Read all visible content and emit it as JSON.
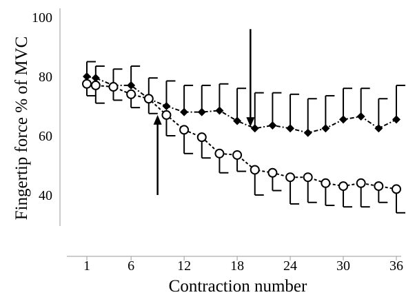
{
  "chart_data": {
    "type": "line",
    "xlabel": "Contraction number",
    "ylabel": "Fingertip force % of MVC",
    "xlim": [
      1,
      36
    ],
    "ylim": [
      30,
      100
    ],
    "x_ticks": [
      1,
      6,
      12,
      18,
      24,
      30,
      36
    ],
    "y_ticks": [
      40,
      60,
      80,
      100
    ],
    "grid": false,
    "legend": "none",
    "series": [
      {
        "marker": "filled-diamond",
        "line_style": "dash-dot",
        "color": "#000000",
        "error_bars": "upper",
        "x": [
          1,
          2,
          4,
          6,
          8,
          10,
          12,
          14,
          16,
          18,
          20,
          22,
          24,
          26,
          28,
          30,
          32,
          34,
          36
        ],
        "y": [
          80,
          79.5,
          77,
          77,
          72.5,
          70,
          68,
          68,
          68.5,
          65,
          62.5,
          63.5,
          62.5,
          61,
          62.5,
          65.5,
          66.5,
          62.5,
          65.5
        ],
        "error": [
          5,
          4,
          5.5,
          6.5,
          7,
          8.5,
          9,
          9,
          9,
          11,
          12,
          11,
          11.5,
          11.5,
          11,
          10.5,
          9.5,
          10,
          11.5
        ]
      },
      {
        "marker": "open-circle",
        "line_style": "dashed",
        "color": "#000000",
        "error_bars": "lower",
        "x": [
          1,
          2,
          4,
          6,
          8,
          10,
          12,
          14,
          16,
          18,
          20,
          22,
          24,
          26,
          28,
          30,
          32,
          34,
          36
        ],
        "y": [
          77.5,
          77,
          76.5,
          74,
          72.5,
          67,
          62,
          59.5,
          54,
          53.5,
          48.5,
          47.5,
          46,
          46,
          44,
          43,
          44,
          43,
          42
        ],
        "error": [
          4,
          6,
          4.5,
          4.5,
          5,
          7,
          8,
          7,
          6.5,
          5.5,
          8.5,
          6,
          9,
          8.5,
          7.5,
          7,
          8,
          5.5,
          8
        ]
      }
    ],
    "annotations": [
      {
        "type": "arrow",
        "direction": "up",
        "x": 9,
        "y_from": 40,
        "y_to": 67
      },
      {
        "type": "arrow",
        "direction": "down",
        "x": 19.5,
        "y_from": 96,
        "y_to": 63
      }
    ]
  }
}
